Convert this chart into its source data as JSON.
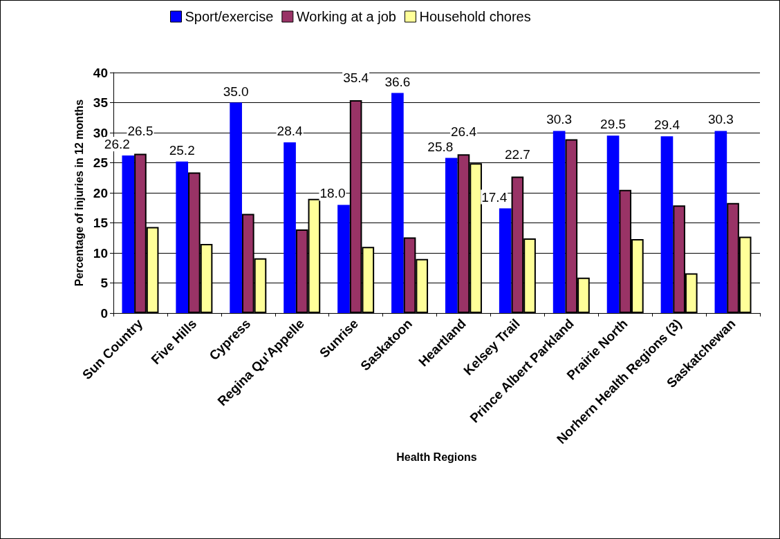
{
  "chart_data": {
    "type": "bar",
    "xlabel": "Health Regions",
    "ylabel": "Percentage of injuries in 12 months",
    "categories": [
      "Sun Country",
      "Five Hills",
      "Cypress",
      "Regina Qu'Appelle",
      "Sunrise",
      "Saskatoon",
      "Heartland",
      "Kelsey Trail",
      "Prince Albert Parkland",
      "Prairie North",
      "Norhern Health Regions (3)",
      "Saskatchewan"
    ],
    "series": [
      {
        "name": "Sport/exercise",
        "color": "#0000ff",
        "values": [
          26.2,
          25.2,
          35.0,
          28.4,
          18.0,
          36.6,
          25.8,
          17.4,
          30.3,
          29.5,
          29.4,
          30.3
        ],
        "value_labels": [
          "26.2",
          "25.2",
          "35.0",
          "28.4",
          "18.0",
          "36.6",
          "25.8",
          "17.4",
          "30.3",
          "29.5",
          "29.4",
          "30.3"
        ]
      },
      {
        "name": "Working at a job",
        "color": "#993366",
        "values": [
          26.5,
          23.4,
          16.5,
          13.9,
          35.4,
          12.6,
          26.4,
          22.7,
          28.9,
          20.5,
          17.9,
          18.3
        ],
        "value_labels": [
          "26.5",
          null,
          null,
          null,
          "35.4",
          null,
          "26.4",
          "22.7",
          null,
          null,
          null,
          null
        ]
      },
      {
        "name": "Household chores",
        "color": "#ffff99",
        "values": [
          14.3,
          11.5,
          9.1,
          19.0,
          11.0,
          9.0,
          24.9,
          12.4,
          5.9,
          12.3,
          6.6,
          12.7
        ]
      }
    ],
    "ylim": [
      0,
      40
    ],
    "yticks": [
      0,
      5,
      10,
      15,
      20,
      25,
      30,
      35,
      40
    ],
    "grid": "y",
    "legend": "top"
  }
}
